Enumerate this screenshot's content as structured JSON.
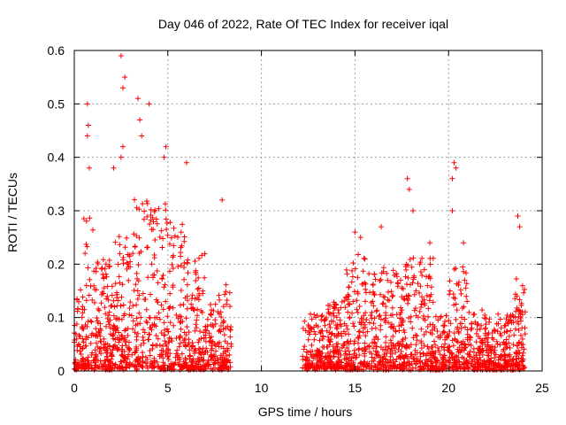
{
  "chart_data": {
    "type": "scatter",
    "title": "Day 046 of 2022, Rate Of TEC Index for receiver iqal",
    "xlabel": "GPS time / hours",
    "ylabel": "ROTI / TECUs",
    "xlim": [
      0,
      25
    ],
    "ylim": [
      0,
      0.6
    ],
    "x_ticks": [
      0,
      5,
      10,
      15,
      20,
      25
    ],
    "x_tick_labels": [
      "0",
      "5",
      "10",
      "15",
      "20",
      "25"
    ],
    "y_ticks": [
      0,
      0.1,
      0.2,
      0.3,
      0.4,
      0.5,
      0.6
    ],
    "y_tick_labels": [
      "0",
      "0.1",
      "0.2",
      "0.3",
      "0.4",
      "0.5",
      "0.6"
    ],
    "grid": true,
    "marker": "+",
    "color": "#ff0000",
    "series": [
      {
        "name": "ROTI",
        "segments": [
          {
            "x_range": [
              0.0,
              8.4
            ],
            "description": "dense points, typical 0.0–0.15"
          },
          {
            "x_range": [
              12.2,
              24.1
            ],
            "description": "dense points, typical 0.0–0.12"
          }
        ],
        "highlights": [
          {
            "x": 2.5,
            "y": 0.59
          },
          {
            "x": 2.6,
            "y": 0.53
          },
          {
            "x": 2.7,
            "y": 0.55
          },
          {
            "x": 0.7,
            "y": 0.5
          },
          {
            "x": 0.75,
            "y": 0.46
          },
          {
            "x": 0.7,
            "y": 0.44
          },
          {
            "x": 3.4,
            "y": 0.51
          },
          {
            "x": 3.5,
            "y": 0.47
          },
          {
            "x": 4.0,
            "y": 0.5
          },
          {
            "x": 3.6,
            "y": 0.44
          },
          {
            "x": 4.9,
            "y": 0.42
          },
          {
            "x": 4.8,
            "y": 0.4
          },
          {
            "x": 2.5,
            "y": 0.4
          },
          {
            "x": 2.6,
            "y": 0.42
          },
          {
            "x": 0.8,
            "y": 0.38
          },
          {
            "x": 2.1,
            "y": 0.38
          },
          {
            "x": 6.0,
            "y": 0.39
          },
          {
            "x": 7.9,
            "y": 0.32
          },
          {
            "x": 17.8,
            "y": 0.36
          },
          {
            "x": 17.9,
            "y": 0.34
          },
          {
            "x": 18.1,
            "y": 0.3
          },
          {
            "x": 20.3,
            "y": 0.39
          },
          {
            "x": 20.4,
            "y": 0.38
          },
          {
            "x": 20.2,
            "y": 0.36
          },
          {
            "x": 20.2,
            "y": 0.3
          },
          {
            "x": 20.8,
            "y": 0.24
          },
          {
            "x": 23.7,
            "y": 0.29
          },
          {
            "x": 23.8,
            "y": 0.27
          },
          {
            "x": 16.4,
            "y": 0.27
          },
          {
            "x": 15.3,
            "y": 0.25
          },
          {
            "x": 15.0,
            "y": 0.26
          },
          {
            "x": 19.0,
            "y": 0.24
          }
        ]
      }
    ]
  }
}
